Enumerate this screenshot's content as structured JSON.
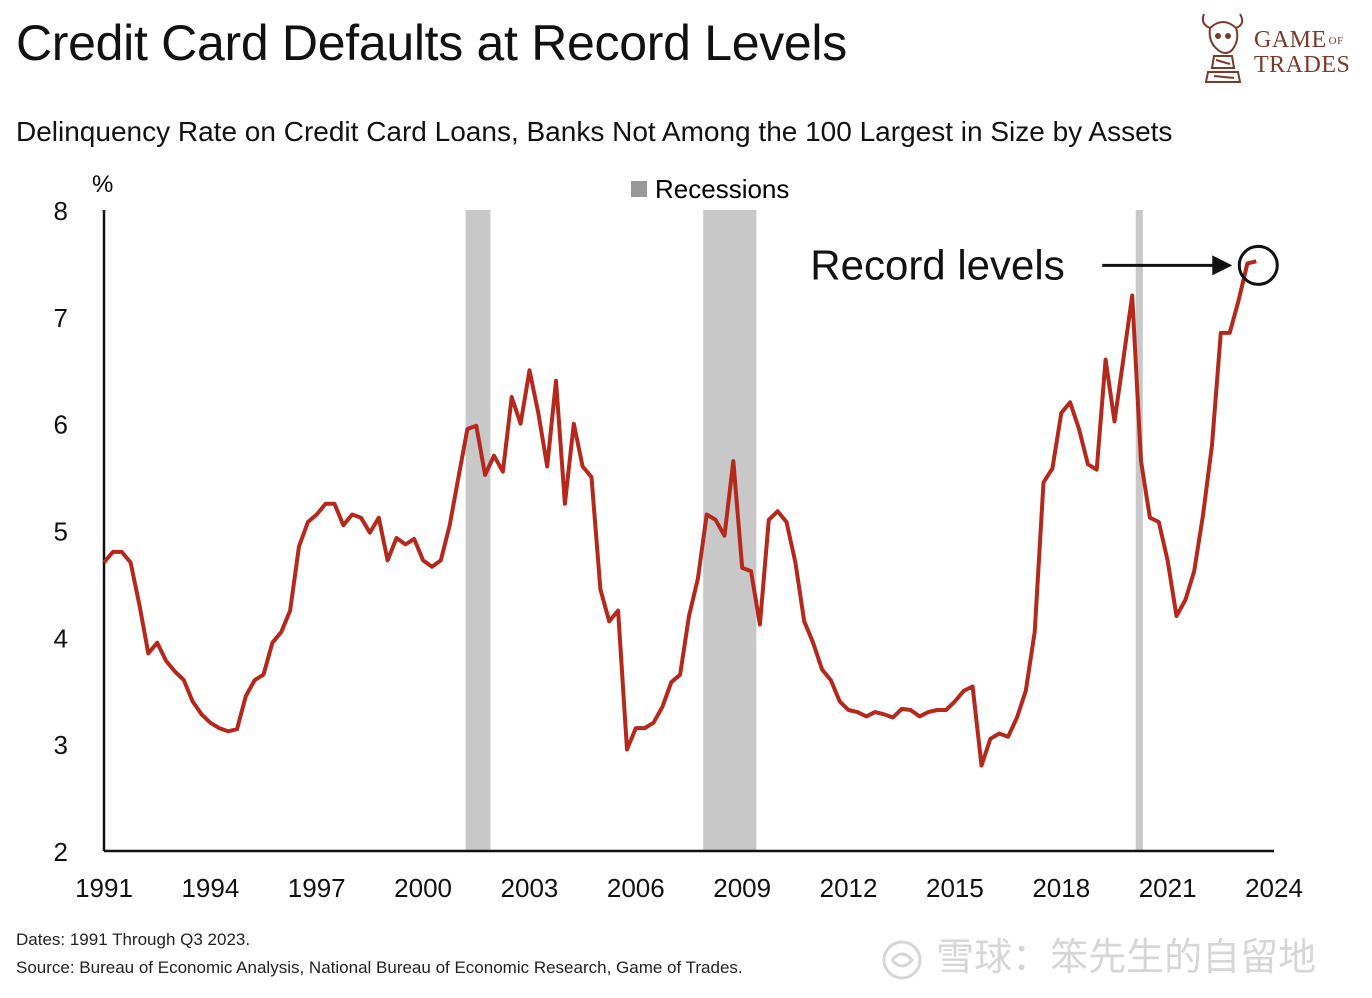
{
  "header": {
    "title": "Credit Card Defaults at Record Levels",
    "subtitle": "Delinquency Rate on Credit Card Loans, Banks Not Among the 100 Largest in Size by Assets"
  },
  "logo": {
    "line1": "GAME",
    "of": "OF",
    "line2": "TRADES"
  },
  "footer": {
    "dates": "Dates: 1991 Through Q3 2023.",
    "source": "Source: Bureau of Economic Analysis, National Bureau of Economic Research, Game of Trades."
  },
  "watermark": {
    "text": "雪球：笨先生的自留地"
  },
  "colors": {
    "line": "#b5281c",
    "recession": "#c8c8c8",
    "axis": "#111111",
    "logo": "#7a3a2a"
  },
  "chart_data": {
    "type": "line",
    "title": "Credit Card Defaults at Record Levels",
    "subtitle": "Delinquency Rate on Credit Card Loans, Banks Not Among the 100 Largest in Size by Assets",
    "ylabel": "%",
    "xlabel": "",
    "ylim": [
      2,
      8
    ],
    "xlim": [
      1991,
      2024
    ],
    "yticks": [
      2,
      3,
      4,
      5,
      6,
      7,
      8
    ],
    "xticks": [
      1991,
      1994,
      1997,
      2000,
      2003,
      2006,
      2009,
      2012,
      2015,
      2018,
      2021,
      2024
    ],
    "grid": false,
    "legend": {
      "label": "Recessions",
      "position": "top-center"
    },
    "recessions": [
      {
        "start": 2001.2,
        "end": 2001.9
      },
      {
        "start": 2007.9,
        "end": 2009.4
      },
      {
        "start": 2020.1,
        "end": 2020.3
      }
    ],
    "annotation": {
      "text": "Record levels",
      "x": 2023.5,
      "y": 7.5
    },
    "series": [
      {
        "name": "Delinquency Rate",
        "x": [
          1991.0,
          1991.25,
          1991.5,
          1991.75,
          1992.0,
          1992.25,
          1992.5,
          1992.75,
          1993.0,
          1993.25,
          1993.5,
          1993.75,
          1994.0,
          1994.25,
          1994.5,
          1994.75,
          1995.0,
          1995.25,
          1995.5,
          1995.75,
          1996.0,
          1996.25,
          1996.5,
          1996.75,
          1997.0,
          1997.25,
          1997.5,
          1997.75,
          1998.0,
          1998.25,
          1998.5,
          1998.75,
          1999.0,
          1999.25,
          1999.5,
          1999.75,
          2000.0,
          2000.25,
          2000.5,
          2000.75,
          2001.0,
          2001.25,
          2001.5,
          2001.75,
          2002.0,
          2002.25,
          2002.5,
          2002.75,
          2003.0,
          2003.25,
          2003.5,
          2003.75,
          2004.0,
          2004.25,
          2004.5,
          2004.75,
          2005.0,
          2005.25,
          2005.5,
          2005.75,
          2006.0,
          2006.25,
          2006.5,
          2006.75,
          2007.0,
          2007.25,
          2007.5,
          2007.75,
          2008.0,
          2008.25,
          2008.5,
          2008.75,
          2009.0,
          2009.25,
          2009.5,
          2009.75,
          2010.0,
          2010.25,
          2010.5,
          2010.75,
          2011.0,
          2011.25,
          2011.5,
          2011.75,
          2012.0,
          2012.25,
          2012.5,
          2012.75,
          2013.0,
          2013.25,
          2013.5,
          2013.75,
          2014.0,
          2014.25,
          2014.5,
          2014.75,
          2015.0,
          2015.25,
          2015.5,
          2015.75,
          2016.0,
          2016.25,
          2016.5,
          2016.75,
          2017.0,
          2017.25,
          2017.5,
          2017.75,
          2018.0,
          2018.25,
          2018.5,
          2018.75,
          2019.0,
          2019.25,
          2019.5,
          2019.75,
          2020.0,
          2020.25,
          2020.5,
          2020.75,
          2021.0,
          2021.25,
          2021.5,
          2021.75,
          2022.0,
          2022.25,
          2022.5,
          2022.75,
          2023.0,
          2023.25,
          2023.5
        ],
        "values": [
          4.7,
          4.8,
          4.8,
          4.7,
          4.3,
          3.85,
          3.95,
          3.78,
          3.68,
          3.6,
          3.4,
          3.28,
          3.2,
          3.15,
          3.12,
          3.14,
          3.45,
          3.6,
          3.65,
          3.95,
          4.05,
          4.25,
          4.85,
          5.08,
          5.15,
          5.25,
          5.25,
          5.05,
          5.15,
          5.12,
          4.98,
          5.12,
          4.72,
          4.93,
          4.87,
          4.92,
          4.72,
          4.66,
          4.72,
          5.05,
          5.5,
          5.95,
          5.98,
          5.52,
          5.7,
          5.55,
          6.25,
          6.0,
          6.5,
          6.1,
          5.6,
          6.4,
          5.25,
          6.0,
          5.6,
          5.5,
          4.45,
          4.15,
          4.25,
          2.95,
          3.15,
          3.15,
          3.2,
          3.35,
          3.58,
          3.65,
          4.2,
          4.55,
          5.15,
          5.1,
          4.95,
          5.65,
          4.65,
          4.62,
          4.12,
          5.1,
          5.18,
          5.08,
          4.7,
          4.15,
          3.95,
          3.7,
          3.6,
          3.4,
          3.32,
          3.3,
          3.26,
          3.3,
          3.28,
          3.25,
          3.33,
          3.32,
          3.26,
          3.3,
          3.32,
          3.32,
          3.4,
          3.5,
          3.54,
          2.8,
          3.05,
          3.1,
          3.07,
          3.25,
          3.5,
          4.05,
          5.45,
          5.58,
          6.1,
          6.2,
          5.95,
          5.62,
          5.57,
          6.6,
          6.02,
          6.6,
          7.2,
          5.65,
          5.12,
          5.08,
          4.72,
          4.2,
          4.35,
          4.62,
          5.15,
          5.8,
          6.85,
          6.85,
          7.15,
          7.5,
          7.52
        ]
      }
    ]
  }
}
